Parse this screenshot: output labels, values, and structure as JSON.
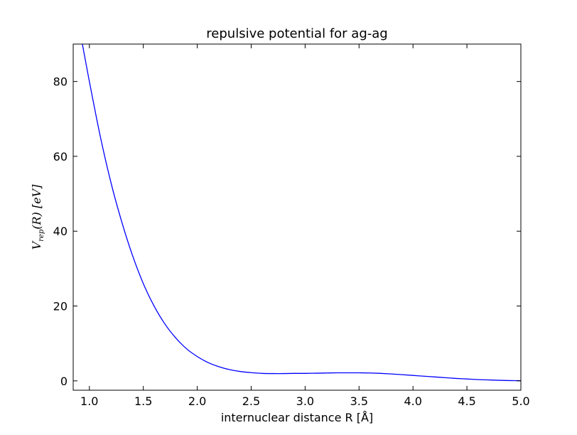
{
  "chart_data": {
    "type": "line",
    "title": "repulsive potential for ag-ag",
    "xlabel": "internuclear distance R [Å]",
    "ylabel": "V_rep(R) [eV]",
    "ylabel_parts": {
      "main": "V",
      "sub": "rep",
      "rest": "(R) [eV]"
    },
    "xlim": [
      0.85,
      5.0
    ],
    "ylim": [
      -2.5,
      90
    ],
    "xticks": [
      1.0,
      1.5,
      2.0,
      2.5,
      3.0,
      3.5,
      4.0,
      4.5,
      5.0
    ],
    "xtick_labels": [
      "1.0",
      "1.5",
      "2.0",
      "2.5",
      "3.0",
      "3.5",
      "4.0",
      "4.5",
      "5.0"
    ],
    "yticks": [
      0,
      20,
      40,
      60,
      80
    ],
    "ytick_labels": [
      "0",
      "20",
      "40",
      "60",
      "80"
    ],
    "grid": false,
    "series": [
      {
        "color": "#0000ff",
        "x": [
          0.935,
          1.0,
          1.1,
          1.2,
          1.3,
          1.4,
          1.5,
          1.6,
          1.7,
          1.8,
          1.9,
          2.0,
          2.1,
          2.2,
          2.3,
          2.4,
          2.5,
          2.6,
          2.7,
          2.8,
          2.9,
          3.0,
          3.1,
          3.2,
          3.3,
          3.4,
          3.5,
          3.6,
          3.7,
          3.8,
          3.9,
          4.0,
          4.1,
          4.2,
          4.3,
          4.4,
          4.5,
          4.6,
          4.7,
          4.8,
          4.9,
          5.0
        ],
        "y": [
          90.0,
          80.0,
          65.5,
          53.0,
          42.5,
          33.5,
          26.0,
          20.0,
          15.2,
          11.5,
          8.6,
          6.5,
          4.9,
          3.8,
          3.0,
          2.5,
          2.2,
          2.0,
          1.95,
          1.95,
          2.0,
          2.0,
          2.05,
          2.1,
          2.15,
          2.15,
          2.15,
          2.1,
          2.0,
          1.85,
          1.65,
          1.45,
          1.25,
          1.05,
          0.85,
          0.65,
          0.5,
          0.35,
          0.25,
          0.15,
          0.08,
          0.05
        ]
      }
    ]
  }
}
